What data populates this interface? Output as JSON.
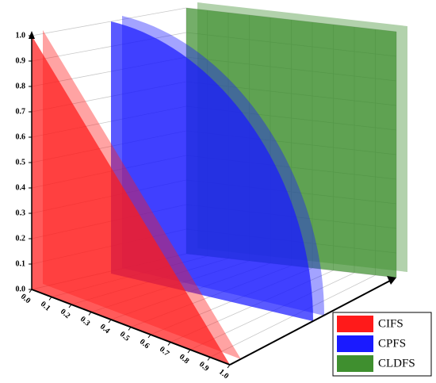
{
  "chart_data": {
    "type": "3d-region",
    "series": [
      {
        "name": "CIFS",
        "color": "#ff1a1a"
      },
      {
        "name": "CPFS",
        "color": "#1a1aff"
      },
      {
        "name": "CLDFS",
        "color": "#3f8f2f"
      }
    ],
    "zlim": [
      0,
      1
    ],
    "zticks": [
      {
        "value": 0,
        "label": "0.0"
      },
      0.1,
      0.2,
      0.3,
      0.4,
      0.5,
      0.6,
      0.7,
      0.8,
      0.9,
      {
        "value": 1,
        "label": "1.0"
      }
    ],
    "xlim": [
      0,
      1
    ],
    "xticks": [
      {
        "value": 0,
        "label": "0.0"
      },
      0.1,
      0.2,
      0.3,
      0.4,
      0.5,
      0.6,
      0.7,
      0.8,
      0.9,
      {
        "value": 1,
        "label": "1.0"
      }
    ],
    "grid": true
  }
}
